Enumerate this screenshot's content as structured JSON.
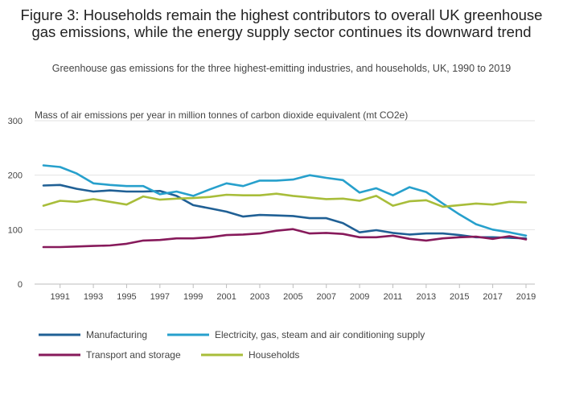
{
  "title": "Figure 3: Households remain the highest contributors to overall UK greenhouse gas emissions, while the energy supply sector continues its downward trend",
  "subtitle": "Greenhouse gas emissions for the three highest-emitting industries, and households, UK, 1990 to 2019",
  "chart_data": {
    "type": "line",
    "title": "Figure 3: Households remain the highest contributors to overall UK greenhouse gas emissions, while the energy supply sector continues its downward trend",
    "subtitle": "Greenhouse gas emissions for the three highest-emitting industries, and households, UK, 1990 to 2019",
    "ylabel": "Mass of air emissions per year in million tonnes of carbon dioxide equivalent (mt CO2e)",
    "xlabel": "",
    "ylim": [
      0,
      300
    ],
    "yticks": [
      0,
      100,
      200,
      300
    ],
    "xticks": [
      1991,
      1993,
      1995,
      1997,
      1999,
      2001,
      2003,
      2005,
      2007,
      2009,
      2011,
      2013,
      2015,
      2017,
      2019
    ],
    "grid": true,
    "legend_position": "bottom",
    "x": [
      1990,
      1991,
      1992,
      1993,
      1994,
      1995,
      1996,
      1997,
      1998,
      1999,
      2000,
      2001,
      2002,
      2003,
      2004,
      2005,
      2006,
      2007,
      2008,
      2009,
      2010,
      2011,
      2012,
      2013,
      2014,
      2015,
      2016,
      2017,
      2018,
      2019
    ],
    "series": [
      {
        "name": "Manufacturing",
        "color": "#206095",
        "values": [
          181,
          182,
          175,
          170,
          172,
          170,
          170,
          171,
          162,
          145,
          139,
          133,
          124,
          127,
          126,
          125,
          121,
          121,
          112,
          95,
          99,
          94,
          91,
          93,
          93,
          90,
          86,
          86,
          85,
          84
        ]
      },
      {
        "name": "Electricity, gas, steam and air conditioning supply",
        "color": "#27a0cc",
        "values": [
          218,
          215,
          203,
          185,
          182,
          180,
          180,
          165,
          170,
          162,
          174,
          185,
          180,
          190,
          190,
          192,
          200,
          195,
          191,
          168,
          176,
          163,
          178,
          169,
          148,
          128,
          110,
          100,
          95,
          89
        ]
      },
      {
        "name": "Transport and storage",
        "color": "#871a5b",
        "values": [
          68,
          68,
          69,
          70,
          71,
          74,
          80,
          81,
          84,
          84,
          86,
          90,
          91,
          93,
          98,
          101,
          93,
          94,
          92,
          86,
          86,
          89,
          83,
          80,
          84,
          86,
          87,
          83,
          88,
          82
        ]
      },
      {
        "name": "Households",
        "color": "#a8bd3a",
        "values": [
          144,
          153,
          151,
          156,
          151,
          146,
          161,
          155,
          157,
          158,
          160,
          164,
          163,
          163,
          166,
          162,
          159,
          156,
          157,
          153,
          162,
          144,
          152,
          154,
          142,
          145,
          148,
          146,
          151,
          150
        ]
      }
    ]
  }
}
